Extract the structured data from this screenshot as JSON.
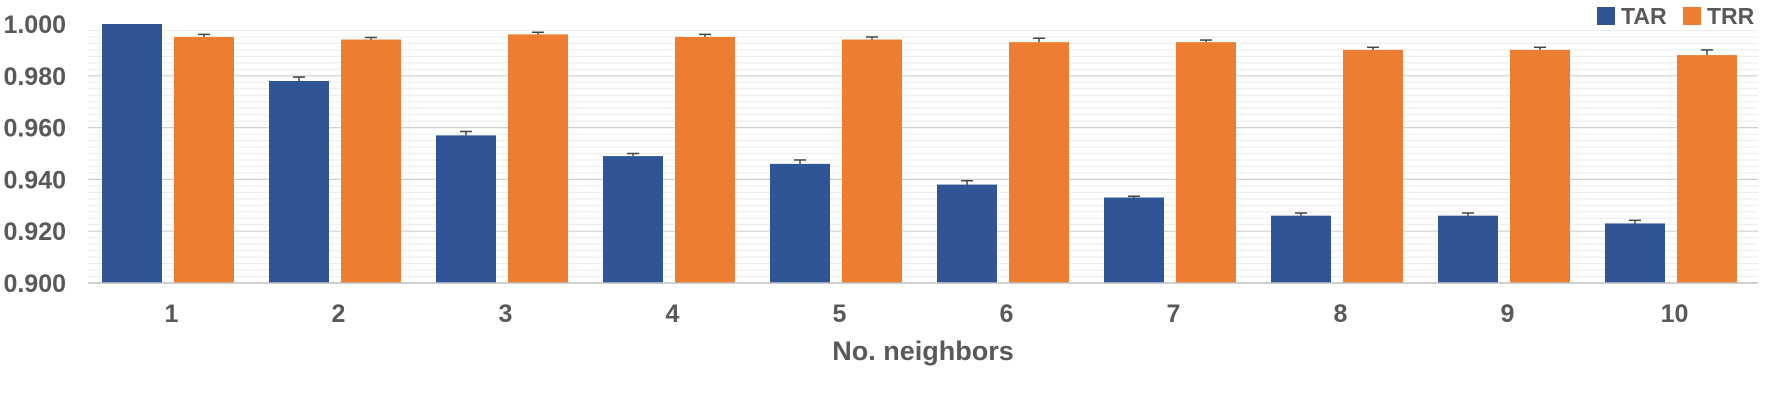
{
  "chart_data": {
    "type": "bar",
    "title": "",
    "xlabel": "No. neighbors",
    "ylabel": "",
    "categories": [
      "1",
      "2",
      "3",
      "4",
      "5",
      "6",
      "7",
      "8",
      "9",
      "10"
    ],
    "ylim": [
      0.9,
      1.0
    ],
    "yticks": [
      "0.900",
      "0.920",
      "0.940",
      "0.960",
      "0.980",
      "1.000"
    ],
    "grid": true,
    "legend_position": "top-right",
    "series": [
      {
        "name": "TAR",
        "color": "#2f5597",
        "values": [
          1.0,
          0.978,
          0.957,
          0.949,
          0.946,
          0.938,
          0.933,
          0.926,
          0.926,
          0.923
        ],
        "errors": [
          0.0,
          0.0015,
          0.0015,
          0.001,
          0.0015,
          0.0015,
          0.0005,
          0.001,
          0.001,
          0.0012
        ]
      },
      {
        "name": "TRR",
        "color": "#ed7d31",
        "values": [
          0.995,
          0.994,
          0.996,
          0.995,
          0.994,
          0.993,
          0.993,
          0.99,
          0.99,
          0.988
        ],
        "errors": [
          0.001,
          0.0008,
          0.0008,
          0.001,
          0.001,
          0.0015,
          0.0008,
          0.001,
          0.001,
          0.002
        ]
      }
    ]
  }
}
